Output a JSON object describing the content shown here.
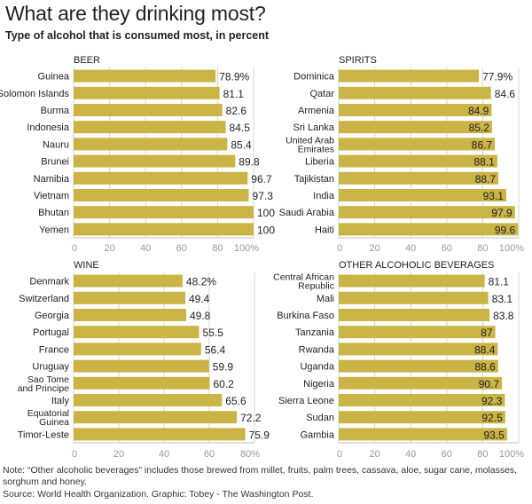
{
  "header": {
    "title": "What are they drinking most?",
    "subtitle": "Type of alcohol that is consumed most, in percent"
  },
  "colors": {
    "bar": "#c9b445",
    "grid": "#d4d4d4",
    "axis": "#bfbfbf",
    "tick": "#999999"
  },
  "chart_data": [
    {
      "type": "bar",
      "orientation": "horizontal",
      "title": "BEER",
      "xlim": [
        0,
        100
      ],
      "ticks": [
        "0",
        "20",
        "40",
        "60",
        "80",
        "100%"
      ],
      "categories": [
        "Guinea",
        "Solomon Islands",
        "Burma",
        "Indonesia",
        "Nauru",
        "Brunei",
        "Namibia",
        "Vietnam",
        "Bhutan",
        "Yemen"
      ],
      "values": [
        78.9,
        81.1,
        82.6,
        84.5,
        85.4,
        89.8,
        96.7,
        97.3,
        100,
        100
      ],
      "labels": [
        "78.9%",
        "81.1",
        "82.6",
        "84.5",
        "85.4",
        "89.8",
        "96.7",
        "97.3",
        "100",
        "100"
      ]
    },
    {
      "type": "bar",
      "orientation": "horizontal",
      "title": "SPIRITS",
      "xlim": [
        0,
        100
      ],
      "ticks": [
        "0",
        "20",
        "40",
        "60",
        "80",
        "100%"
      ],
      "categories": [
        "Dominica",
        "Qatar",
        "Armenia",
        "Sri Lanka",
        "United Arab Emirates",
        "Liberia",
        "Tajikistan",
        "India",
        "Saudi Arabia",
        "Haiti"
      ],
      "values": [
        77.9,
        84.6,
        84.9,
        85.2,
        86.7,
        88.1,
        88.7,
        93.1,
        97.9,
        99.6
      ],
      "labels": [
        "77.9%",
        "84.6",
        "84.9",
        "85.2",
        "86.7",
        "88.1",
        "88.7",
        "93.1",
        "97.9",
        "99.6"
      ]
    },
    {
      "type": "bar",
      "orientation": "horizontal",
      "title": "WINE",
      "xlim": [
        0,
        80
      ],
      "ticks": [
        "0",
        "20",
        "40",
        "60",
        "80%"
      ],
      "categories": [
        "Denmark",
        "Switzerland",
        "Georgia",
        "Portugal",
        "France",
        "Uruguay",
        "Sao Tome and Principe",
        "Italy",
        "Equatorial Guinea",
        "Timor-Leste"
      ],
      "values": [
        48.2,
        49.4,
        49.8,
        55.5,
        56.4,
        59.9,
        60.2,
        65.6,
        72.2,
        75.9
      ],
      "labels": [
        "48.2%",
        "49.4",
        "49.8",
        "55.5",
        "56.4",
        "59.9",
        "60.2",
        "65.6",
        "72.2",
        "75.9"
      ]
    },
    {
      "type": "bar",
      "orientation": "horizontal",
      "title": "OTHER ALCOHOLIC BEVERAGES",
      "xlim": [
        0,
        100
      ],
      "ticks": [
        "0",
        "20",
        "40",
        "60",
        "80",
        "100%"
      ],
      "categories": [
        "Central African Republic",
        "Mali",
        "Burkina Faso",
        "Tanzania",
        "Rwanda",
        "Uganda",
        "Nigeria",
        "Sierra Leone",
        "Sudan",
        "Gambia"
      ],
      "values": [
        81.1,
        83.1,
        83.8,
        87,
        88.4,
        88.6,
        90.7,
        92.3,
        92.5,
        93.5
      ],
      "labels": [
        "81.1",
        "83.1",
        "83.8",
        "87",
        "88.4",
        "88.6",
        "90.7",
        "92.3",
        "92.5",
        "93.5"
      ]
    }
  ],
  "footer": {
    "note": "Note: “Other alcoholic beverages” includes those brewed from millet, fruits, palm trees, cassava, aloe, sugar cane, molasses, sorghum and honey.",
    "source": "Source: World Health Organization. Graphic: Tobey - The Washington Post."
  }
}
